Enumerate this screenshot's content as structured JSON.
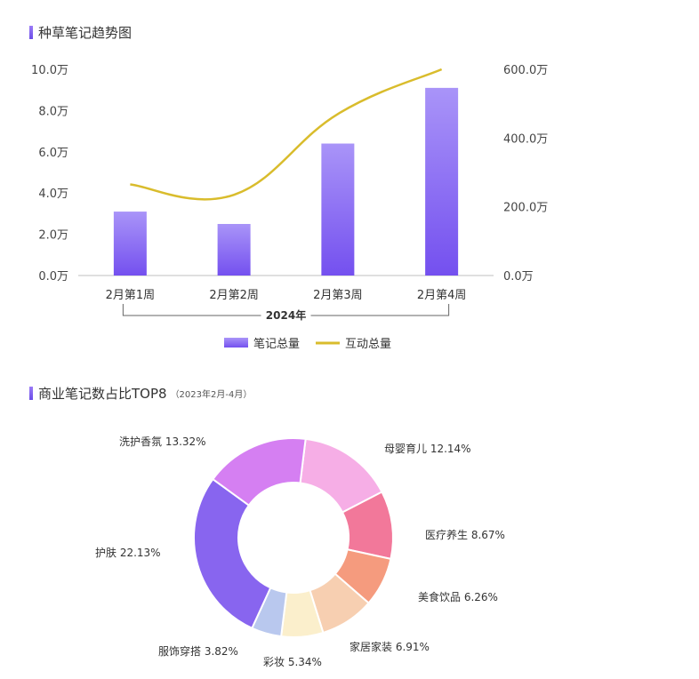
{
  "titles": {
    "trend": "种草笔记趋势图",
    "share": "商业笔记数占比TOP8",
    "share_sub": "（2023年2月-4月）"
  },
  "chart_data": [
    {
      "type": "bar",
      "categories": [
        "2月第1周",
        "2月第2周",
        "2月第3周",
        "2月第4周"
      ],
      "group_label": "2024年",
      "series": [
        {
          "name": "笔记总量",
          "type": "bar",
          "axis": "left",
          "values": [
            3.1,
            2.5,
            6.4,
            9.1
          ],
          "color": "#7b5cf0"
        },
        {
          "name": "互动总量",
          "type": "line",
          "axis": "right",
          "values": [
            265,
            235,
            470,
            600
          ],
          "color": "#d9bc2c"
        }
      ],
      "y_left": {
        "min": 0,
        "max": 10,
        "ticks": [
          "0.0万",
          "2.0万",
          "4.0万",
          "6.0万",
          "8.0万",
          "10.0万"
        ]
      },
      "y_right": {
        "min": 0,
        "max": 600,
        "ticks": [
          "0.0万",
          "200.0万",
          "400.0万",
          "600.0万"
        ]
      },
      "legend_position": "bottom-center"
    },
    {
      "type": "pie",
      "donut": true,
      "slices": [
        {
          "label": "母婴育儿",
          "value": 12.14,
          "text": "母婴育儿 12.14%",
          "color": "#f6aee6"
        },
        {
          "label": "医疗养生",
          "value": 8.67,
          "text": "医疗养生 8.67%",
          "color": "#f2789a"
        },
        {
          "label": "美食饮品",
          "value": 6.26,
          "text": "美食饮品 6.26%",
          "color": "#f59b7e"
        },
        {
          "label": "家居家装",
          "value": 6.91,
          "text": "家居家装 6.91%",
          "color": "#f7cfb1"
        },
        {
          "label": "彩妆",
          "value": 5.34,
          "text": "彩妆 5.34%",
          "color": "#fbefcc"
        },
        {
          "label": "服饰穿搭",
          "value": 3.82,
          "text": "服饰穿搭 3.82%",
          "color": "#b9c8ee"
        },
        {
          "label": "护肤",
          "value": 22.13,
          "text": "护肤 22.13%",
          "color": "#8865ef"
        },
        {
          "label": "洗护香氛",
          "value": 13.32,
          "text": "洗护香氛 13.32%",
          "color": "#d57ff2"
        }
      ]
    }
  ]
}
